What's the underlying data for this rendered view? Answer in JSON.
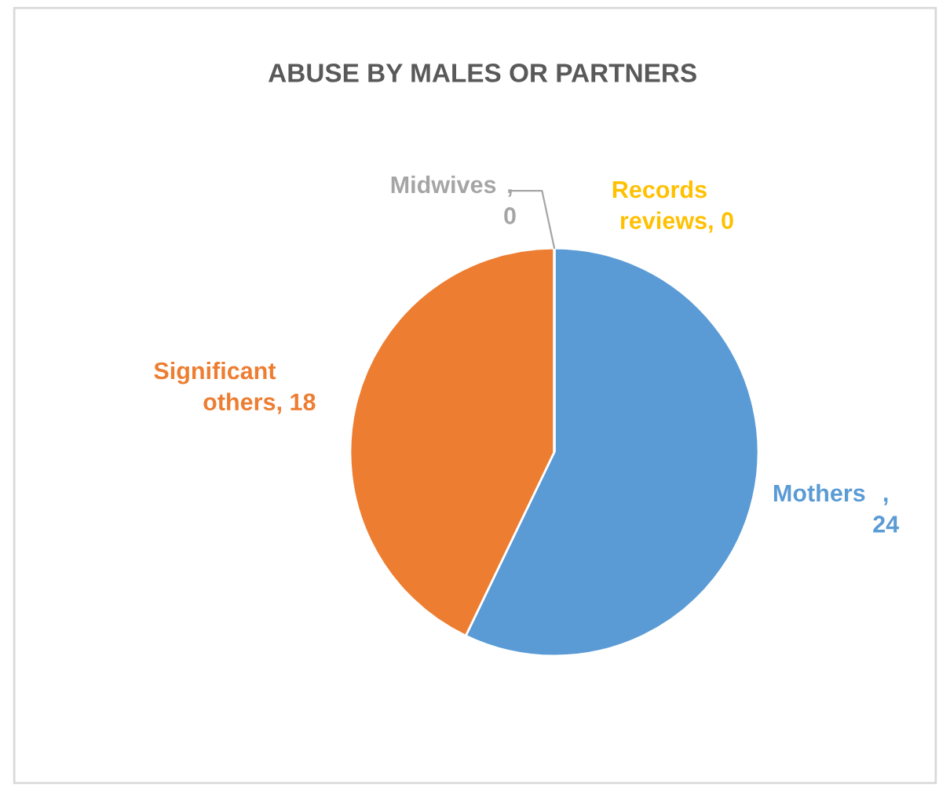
{
  "chart_data": {
    "type": "pie",
    "title": "ABUSE BY MALES OR PARTNERS",
    "categories": [
      "Mothers ",
      "Significant others",
      "Midwives ",
      "Records reviews"
    ],
    "values": [
      24,
      18,
      0,
      0
    ],
    "colors": [
      "#5b9bd5",
      "#ed7d31",
      "#a5a5a5",
      "#ffc000"
    ],
    "value_labels": [
      ", 24",
      ", 18",
      ", 0",
      ", 0"
    ],
    "legend": false
  }
}
